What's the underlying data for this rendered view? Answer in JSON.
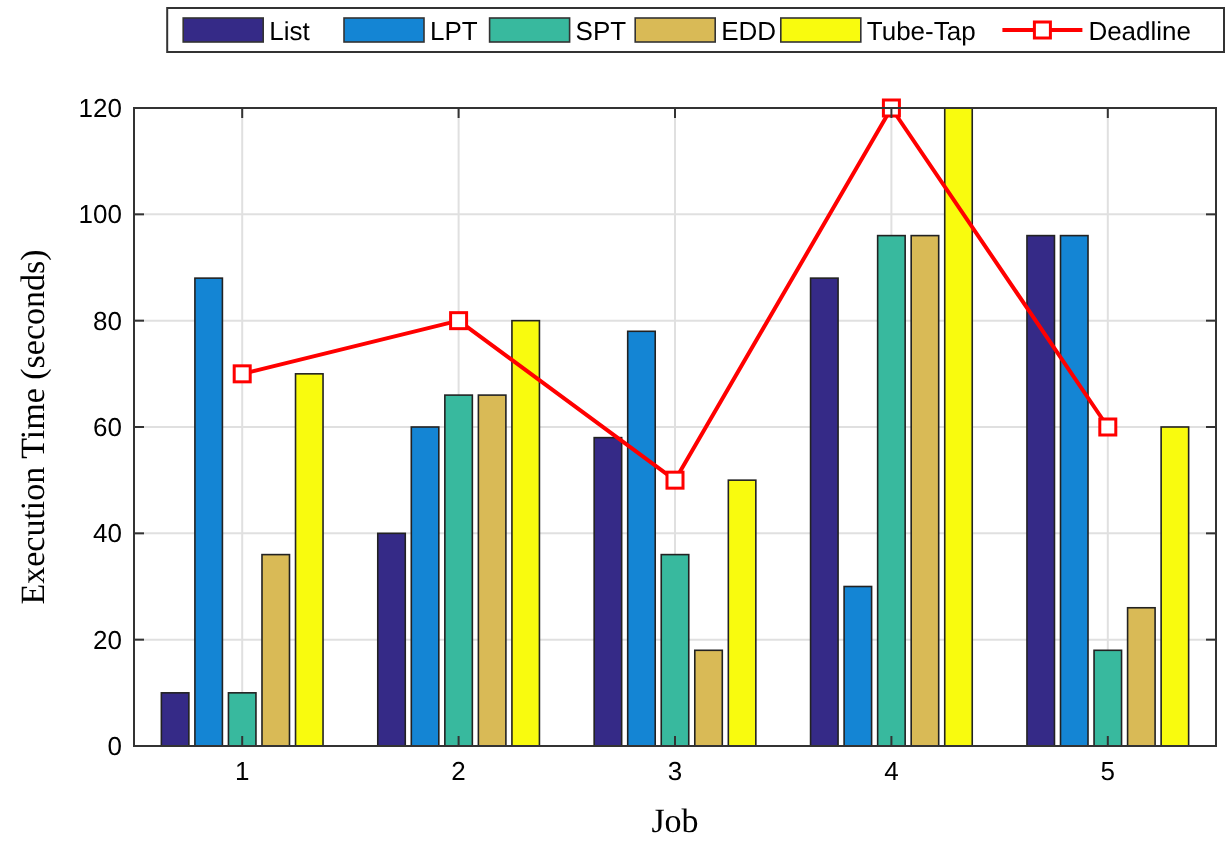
{
  "chart_data": {
    "type": "bar",
    "xlabel": "Job",
    "ylabel": "Execution Time (seconds)",
    "categories": [
      "1",
      "2",
      "3",
      "4",
      "5"
    ],
    "series": [
      {
        "name": "List",
        "color": "#352a87",
        "values": [
          10,
          40,
          58,
          88,
          96
        ]
      },
      {
        "name": "LPT",
        "color": "#1485d4",
        "values": [
          88,
          60,
          78,
          30,
          96
        ]
      },
      {
        "name": "SPT",
        "color": "#38b99e",
        "values": [
          10,
          66,
          36,
          96,
          18
        ]
      },
      {
        "name": "EDD",
        "color": "#d9ba56",
        "values": [
          36,
          66,
          18,
          96,
          26
        ]
      },
      {
        "name": "Tube-Tap",
        "color": "#f9fb0e",
        "values": [
          70,
          80,
          50,
          120,
          60
        ]
      },
      {
        "name": "Deadline",
        "type": "line",
        "color": "#ff0000",
        "marker": "square",
        "values": [
          70,
          80,
          50,
          120,
          60
        ]
      }
    ],
    "ylim": [
      0,
      120
    ],
    "yticks": [
      0,
      20,
      40,
      60,
      80,
      100,
      120
    ],
    "grid": true,
    "legend": "top"
  }
}
